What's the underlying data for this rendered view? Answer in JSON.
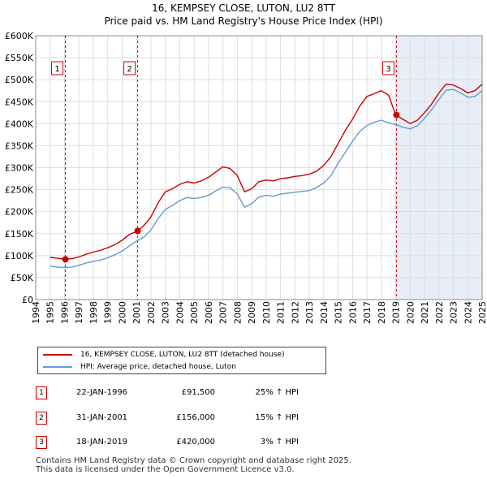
{
  "chart_data": {
    "type": "line",
    "title": "16, KEMPSEY CLOSE, LUTON, LU2 8TT",
    "subtitle": "Price paid vs. HM Land Registry's House Price Index (HPI)",
    "xlim": [
      1994,
      2025
    ],
    "ylim": [
      0,
      600000
    ],
    "x_ticks": [
      "1994",
      "1995",
      "1996",
      "1997",
      "1998",
      "1999",
      "2000",
      "2001",
      "2002",
      "2003",
      "2004",
      "2005",
      "2006",
      "2007",
      "2008",
      "2009",
      "2010",
      "2011",
      "2012",
      "2013",
      "2014",
      "2015",
      "2016",
      "2017",
      "2018",
      "2019",
      "2020",
      "2021",
      "2022",
      "2023",
      "2024",
      "2025"
    ],
    "y_ticks": [
      {
        "value": 0,
        "label": "£0"
      },
      {
        "value": 50000,
        "label": "£50K"
      },
      {
        "value": 100000,
        "label": "£100K"
      },
      {
        "value": 150000,
        "label": "£150K"
      },
      {
        "value": 200000,
        "label": "£200K"
      },
      {
        "value": 250000,
        "label": "£250K"
      },
      {
        "value": 300000,
        "label": "£300K"
      },
      {
        "value": 350000,
        "label": "£350K"
      },
      {
        "value": 400000,
        "label": "£400K"
      },
      {
        "value": 450000,
        "label": "£450K"
      },
      {
        "value": 500000,
        "label": "£500K"
      },
      {
        "value": 550000,
        "label": "£550K"
      },
      {
        "value": 600000,
        "label": "£600K"
      }
    ],
    "series": [
      {
        "name": "16, KEMPSEY CLOSE, LUTON, LU2 8TT (detached house)",
        "color": "#cc0000",
        "x": [
          1995.0,
          1995.5,
          1996.06,
          1996.5,
          1997.0,
          1997.5,
          1998.0,
          1998.5,
          1999.0,
          1999.5,
          2000.0,
          2000.5,
          2001.08,
          2001.5,
          2002.0,
          2002.5,
          2003.0,
          2003.5,
          2004.0,
          2004.5,
          2005.0,
          2005.5,
          2006.0,
          2006.5,
          2007.0,
          2007.5,
          2008.0,
          2008.5,
          2009.0,
          2009.5,
          2010.0,
          2010.5,
          2011.0,
          2011.5,
          2012.0,
          2012.5,
          2013.0,
          2013.5,
          2014.0,
          2014.5,
          2015.0,
          2015.5,
          2016.0,
          2016.5,
          2017.0,
          2017.5,
          2018.0,
          2018.5,
          2019.0,
          2019.5,
          2020.0,
          2020.5,
          2021.0,
          2021.5,
          2022.0,
          2022.5,
          2023.0,
          2023.5,
          2024.0,
          2024.5,
          2025.0
        ],
        "y": [
          96000,
          94000,
          91500,
          93000,
          97000,
          103000,
          108000,
          112000,
          118000,
          125000,
          135000,
          148000,
          156000,
          168000,
          188000,
          220000,
          245000,
          252000,
          262000,
          268000,
          265000,
          270000,
          278000,
          290000,
          302000,
          298000,
          282000,
          245000,
          252000,
          268000,
          272000,
          270000,
          275000,
          277000,
          280000,
          282000,
          285000,
          292000,
          305000,
          325000,
          355000,
          385000,
          410000,
          440000,
          462000,
          468000,
          475000,
          465000,
          420000,
          410000,
          400000,
          408000,
          425000,
          445000,
          470000,
          490000,
          488000,
          480000,
          470000,
          475000,
          490000
        ]
      },
      {
        "name": "HPI: Average price, detached house, Luton",
        "color": "#6699cc",
        "x": [
          1995.0,
          1995.5,
          1996.0,
          1996.5,
          1997.0,
          1997.5,
          1998.0,
          1998.5,
          1999.0,
          1999.5,
          2000.0,
          2000.5,
          2001.0,
          2001.5,
          2002.0,
          2002.5,
          2003.0,
          2003.5,
          2004.0,
          2004.5,
          2005.0,
          2005.5,
          2006.0,
          2006.5,
          2007.0,
          2007.5,
          2008.0,
          2008.5,
          2009.0,
          2009.5,
          2010.0,
          2010.5,
          2011.0,
          2011.5,
          2012.0,
          2012.5,
          2013.0,
          2013.5,
          2014.0,
          2014.5,
          2015.0,
          2015.5,
          2016.0,
          2016.5,
          2017.0,
          2017.5,
          2018.0,
          2018.5,
          2019.0,
          2019.5,
          2020.0,
          2020.5,
          2021.0,
          2021.5,
          2022.0,
          2022.5,
          2023.0,
          2023.5,
          2024.0,
          2024.5,
          2025.0
        ],
        "y": [
          76000,
          74000,
          73000,
          74000,
          78000,
          83000,
          87000,
          90000,
          95000,
          102000,
          110000,
          122000,
          133000,
          142000,
          158000,
          184000,
          205000,
          214000,
          225000,
          232000,
          230000,
          232000,
          237000,
          247000,
          256000,
          254000,
          240000,
          210000,
          218000,
          233000,
          237000,
          235000,
          240000,
          242000,
          244000,
          246000,
          248000,
          255000,
          265000,
          282000,
          310000,
          335000,
          360000,
          382000,
          396000,
          403000,
          408000,
          402000,
          398000,
          392000,
          388000,
          395000,
          412000,
          432000,
          455000,
          476000,
          478000,
          470000,
          460000,
          462000,
          475000
        ]
      }
    ],
    "sales": [
      {
        "label": "1",
        "x": 1996.06,
        "y": 91500,
        "date": "22-JAN-1996",
        "price": "£91,500",
        "hpi": "25% ↑ HPI"
      },
      {
        "label": "2",
        "x": 2001.08,
        "y": 156000,
        "date": "31-JAN-2001",
        "price": "£156,000",
        "hpi": "15% ↑ HPI"
      },
      {
        "label": "3",
        "x": 2019.05,
        "y": 420000,
        "date": "18-JAN-2019",
        "price": "£420,000",
        "hpi": "3% ↑ HPI"
      }
    ]
  },
  "legend": {
    "property": "16, KEMPSEY CLOSE, LUTON, LU2 8TT (detached house)",
    "hpi": "HPI: Average price, detached house, Luton"
  },
  "colors": {
    "property": "#cc0000",
    "hpi": "#6699cc",
    "highlight": "#e8eef8",
    "marker_line": "#cc0000"
  },
  "footer": {
    "line1": "Contains HM Land Registry data © Crown copyright and database right 2025.",
    "line2": "This data is licensed under the Open Government Licence v3.0."
  }
}
